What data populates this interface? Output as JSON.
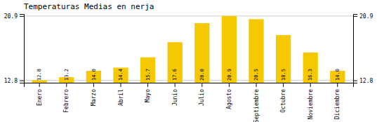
{
  "chart_data": {
    "type": "bar",
    "title": "Temperaturas Medias en nerja",
    "categories": [
      "Enero",
      "Febrero",
      "Marzo",
      "Abril",
      "Mayo",
      "Junio",
      "Julio",
      "Agosto",
      "Septiembre",
      "Octubre",
      "Noviembre",
      "Diciembre"
    ],
    "values": [
      12.8,
      13.2,
      14.0,
      14.4,
      15.7,
      17.6,
      20.0,
      20.9,
      20.5,
      18.5,
      16.3,
      14.0
    ],
    "value_labels": [
      "12.8",
      "13.2",
      "14.0",
      "14.4",
      "15.7",
      "17.6",
      "20.0",
      "20.9",
      "20.5",
      "18.5",
      "16.3",
      "14.0"
    ],
    "data_labels": true,
    "color": "#F5C800",
    "ylim": [
      12.5,
      21.15
    ],
    "yticks": [
      12.8,
      20.9
    ],
    "y2lim": [
      12.5,
      21.15
    ],
    "y2ticks": [
      12.8,
      20.9
    ],
    "grid": true
  }
}
